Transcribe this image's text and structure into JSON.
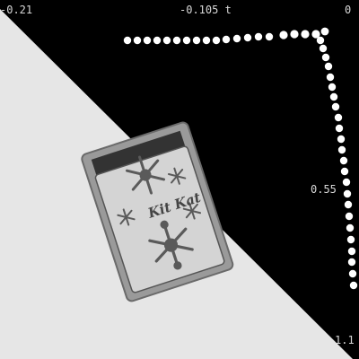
{
  "axis": {
    "x_min_label": "-0.21",
    "x_mid_label": "-0.105 t",
    "x_max_label": "0",
    "y_mid_label": "0.55",
    "y_max_label": "1.1"
  },
  "colors": {
    "background": "#000000",
    "light_region": "#e6e6e6",
    "dots": "#ffffff",
    "packet_edge": "#8a8a8a",
    "packet_body": "#d4d4d4",
    "snowflake": "#5a5a5a"
  },
  "objects": {
    "packet_icon": "snack-bag-with-snowflake-print",
    "packet_label": "Kit Kat"
  }
}
